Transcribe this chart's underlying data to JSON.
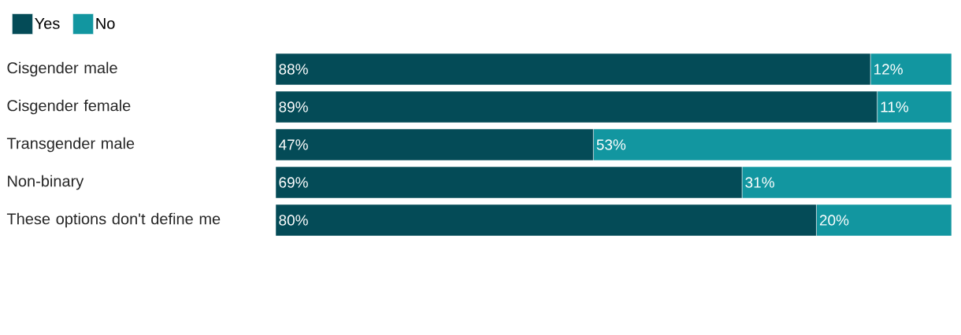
{
  "chart_data": {
    "type": "bar",
    "orientation": "horizontal",
    "stacked": true,
    "legend": "top left",
    "categories": [
      "Cisgender male",
      "Cisgender female",
      "Transgender male",
      "Non-binary",
      "These options don't define me"
    ],
    "series": [
      {
        "name": "Yes",
        "color": "#044b57",
        "values": [
          88,
          89,
          47,
          69,
          80
        ],
        "value_labels": [
          "88%",
          "89%",
          "47%",
          "69%",
          "80%"
        ]
      },
      {
        "name": "No",
        "color": "#1296a0",
        "values": [
          12,
          11,
          53,
          31,
          20
        ],
        "value_labels": [
          "12%",
          "11%",
          "53%",
          "31%",
          "20%"
        ]
      }
    ]
  }
}
